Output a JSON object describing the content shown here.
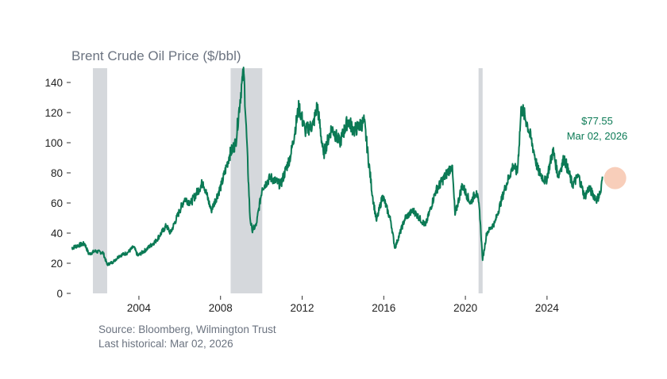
{
  "chart_data": {
    "type": "line",
    "title": "Brent Crude Oil Price ($/bbl)",
    "xlabel": "",
    "ylabel": "",
    "ylim": [
      0,
      146
    ],
    "xlim": [
      2000.15,
      2026.3
    ],
    "yticks": [
      0,
      20,
      40,
      60,
      80,
      100,
      120,
      140
    ],
    "xticks": [
      2004,
      2008,
      2012,
      2016,
      2020,
      2024
    ],
    "grid": false,
    "series": [
      {
        "name": "Brent Crude Oil Price",
        "color": "#0b7a55",
        "points": [
          [
            2000.15,
            30
          ],
          [
            2000.5,
            32
          ],
          [
            2000.8,
            33
          ],
          [
            2001.0,
            26
          ],
          [
            2001.3,
            28
          ],
          [
            2001.7,
            27
          ],
          [
            2001.9,
            19
          ],
          [
            2002.2,
            21
          ],
          [
            2002.5,
            25
          ],
          [
            2002.9,
            27
          ],
          [
            2003.2,
            31
          ],
          [
            2003.4,
            25
          ],
          [
            2003.8,
            29
          ],
          [
            2004.3,
            35
          ],
          [
            2004.8,
            45
          ],
          [
            2005.0,
            40
          ],
          [
            2005.7,
            63
          ],
          [
            2006.0,
            60
          ],
          [
            2006.6,
            74
          ],
          [
            2007.0,
            55
          ],
          [
            2007.5,
            72
          ],
          [
            2007.9,
            92
          ],
          [
            2008.2,
            100
          ],
          [
            2008.5,
            140
          ],
          [
            2008.6,
            146
          ],
          [
            2008.9,
            50
          ],
          [
            2009.0,
            42
          ],
          [
            2009.2,
            45
          ],
          [
            2009.5,
            70
          ],
          [
            2009.9,
            77
          ],
          [
            2010.4,
            72
          ],
          [
            2010.9,
            92
          ],
          [
            2011.3,
            124
          ],
          [
            2011.6,
            108
          ],
          [
            2012.0,
            112
          ],
          [
            2012.2,
            125
          ],
          [
            2012.5,
            92
          ],
          [
            2012.9,
            110
          ],
          [
            2013.3,
            100
          ],
          [
            2013.7,
            115
          ],
          [
            2014.0,
            108
          ],
          [
            2014.5,
            114
          ],
          [
            2014.9,
            65
          ],
          [
            2015.1,
            48
          ],
          [
            2015.4,
            65
          ],
          [
            2015.8,
            48
          ],
          [
            2016.0,
            30
          ],
          [
            2016.5,
            50
          ],
          [
            2016.9,
            55
          ],
          [
            2017.5,
            45
          ],
          [
            2018.0,
            68
          ],
          [
            2018.8,
            85
          ],
          [
            2018.95,
            52
          ],
          [
            2019.3,
            72
          ],
          [
            2019.7,
            60
          ],
          [
            2020.0,
            68
          ],
          [
            2020.15,
            55
          ],
          [
            2020.3,
            22
          ],
          [
            2020.5,
            40
          ],
          [
            2020.9,
            47
          ],
          [
            2021.4,
            70
          ],
          [
            2021.8,
            85
          ],
          [
            2022.0,
            80
          ],
          [
            2022.2,
            124
          ],
          [
            2022.5,
            112
          ],
          [
            2022.8,
            95
          ],
          [
            2023.0,
            82
          ],
          [
            2023.4,
            74
          ],
          [
            2023.75,
            95
          ],
          [
            2024.0,
            78
          ],
          [
            2024.3,
            90
          ],
          [
            2024.7,
            72
          ],
          [
            2025.0,
            78
          ],
          [
            2025.3,
            64
          ],
          [
            2025.5,
            70
          ],
          [
            2025.9,
            62
          ],
          [
            2026.1,
            68
          ],
          [
            2026.17,
            77.55
          ]
        ]
      }
    ],
    "recessions": [
      [
        2001.2,
        2001.9
      ],
      [
        2007.95,
        2009.5
      ],
      [
        2020.1,
        2020.3
      ]
    ],
    "recession_color": "#d5d8dc",
    "highlight": {
      "x": 2026.17,
      "y": 77.55,
      "color": "#f7c6ae"
    },
    "annotation": {
      "value": "$77.55",
      "date": "Mar 02, 2026"
    }
  },
  "source": "Source: Bloomberg, Wilmington Trust",
  "last_historical": "Last historical: Mar 02, 2026"
}
